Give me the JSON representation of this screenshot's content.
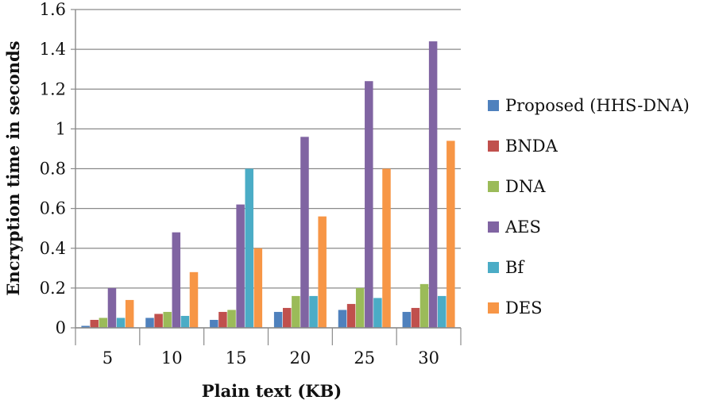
{
  "chart_data": {
    "type": "bar",
    "title": "",
    "xlabel": "Plain text (KB)",
    "ylabel": "Encryption time in seconds",
    "ylim": [
      0,
      1.6
    ],
    "yticks": [
      "0",
      "0.2",
      "0.4",
      "0.6",
      "0.8",
      "1",
      "1.2",
      "1.4",
      "1.6"
    ],
    "categories": [
      "5",
      "10",
      "15",
      "20",
      "25",
      "30"
    ],
    "grid": true,
    "legend_position": "right",
    "series": [
      {
        "name": "Proposed  (HHS-DNA)",
        "color": "#4f81bd",
        "values": [
          0.01,
          0.05,
          0.04,
          0.08,
          0.09,
          0.08
        ]
      },
      {
        "name": "BNDA",
        "color": "#c0504d",
        "values": [
          0.04,
          0.07,
          0.08,
          0.1,
          0.12,
          0.1
        ]
      },
      {
        "name": "DNA",
        "color": "#9bbb59",
        "values": [
          0.05,
          0.08,
          0.09,
          0.16,
          0.2,
          0.22
        ]
      },
      {
        "name": "AES",
        "color": "#8064a2",
        "values": [
          0.2,
          0.48,
          0.62,
          0.96,
          1.24,
          1.44
        ]
      },
      {
        "name": "Bf",
        "color": "#4bacc6",
        "values": [
          0.05,
          0.06,
          0.8,
          0.16,
          0.15,
          0.16
        ]
      },
      {
        "name": "DES",
        "color": "#f79646",
        "values": [
          0.14,
          0.28,
          0.4,
          0.56,
          0.8,
          0.94
        ]
      }
    ]
  }
}
